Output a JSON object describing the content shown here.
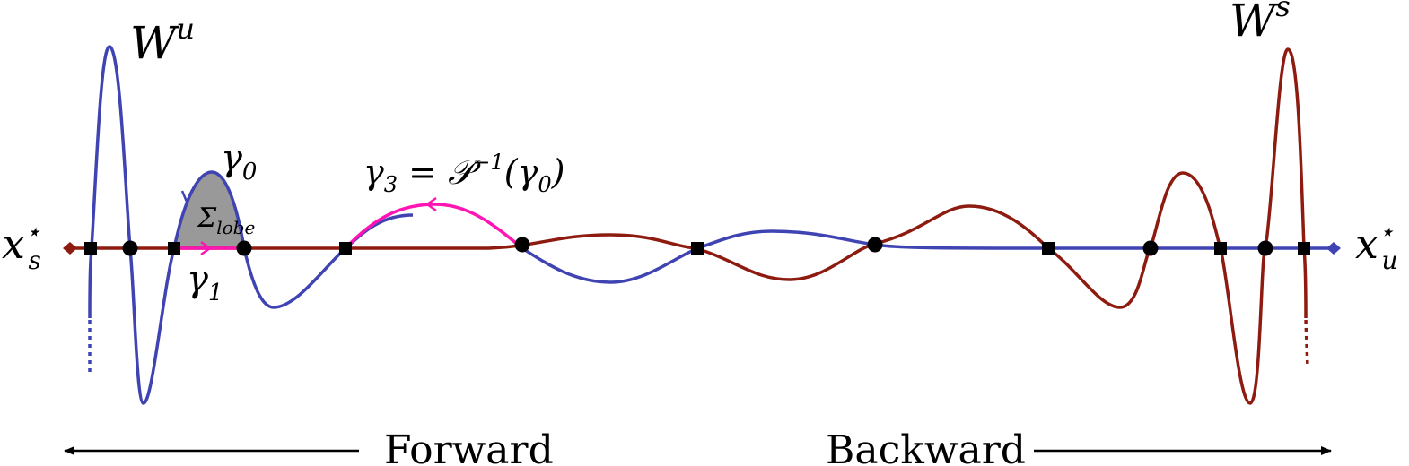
{
  "labels": {
    "unstable_manifold": {
      "base": "W",
      "sup": "u"
    },
    "stable_manifold": {
      "base": "W",
      "sup": "s"
    },
    "left_fixed_point": {
      "base": "x",
      "sup": "⋆",
      "sub": "s"
    },
    "right_fixed_point": {
      "base": "x",
      "sup": "⋆",
      "sub": "u"
    },
    "gamma0": {
      "base": "γ",
      "sub": "0"
    },
    "gamma1": {
      "base": "γ",
      "sub": "1"
    },
    "gamma3": {
      "base": "γ",
      "sub": "3",
      "rest": " = 𝒫",
      "sup": "−1",
      "tail": "(γ",
      "tail_sub": "0",
      "close": ")"
    },
    "lobe": {
      "base": "Σ",
      "sub": "lobe"
    },
    "forward": "Forward",
    "backward": "Backward"
  },
  "colors": {
    "unstable": "#3f44b2",
    "stable": "#8e1b10",
    "highlight": "#ff14b4",
    "lobe_fill": "#999999",
    "points": "#000000",
    "arrows": "#000000"
  }
}
